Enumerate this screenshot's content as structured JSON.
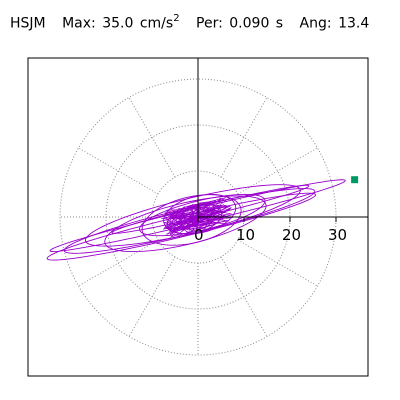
{
  "title": {
    "station": "HSJM",
    "max_label": "Max:",
    "max_value": "35.0",
    "max_units": "cm/s",
    "max_units_exp": "2",
    "period_label": "Per:",
    "period_value": "0.090 s",
    "angle_label": "Ang:",
    "angle_value": "13.4"
  },
  "colors": {
    "trace": "#9900cc",
    "marker": "#009966",
    "grid": "#888888",
    "axis": "#000000"
  },
  "chart_data": {
    "type": "line",
    "description_free": true,
    "rings": [
      10,
      20,
      30
    ],
    "ring_tick_labels": [
      "0",
      "10",
      "20",
      "30"
    ],
    "radial_lines_every_deg": 30,
    "r_max": 35,
    "max_point": {
      "r": 35.0,
      "angle_deg": 13.4
    },
    "trace_loops": [
      {
        "a": 33.0,
        "b": 1.6,
        "cx": 0.0,
        "cy": 0.3
      },
      {
        "a": 28.0,
        "b": 2.8,
        "cx": -2.0,
        "cy": -0.4
      },
      {
        "a": 24.0,
        "b": 3.8,
        "cx": -1.0,
        "cy": 0.6
      },
      {
        "a": 18.0,
        "b": 4.5,
        "cx": -3.0,
        "cy": -0.8
      },
      {
        "a": 14.0,
        "b": 3.2,
        "cx": 1.0,
        "cy": 0.2
      },
      {
        "a": 11.0,
        "b": 5.0,
        "cx": -1.5,
        "cy": -0.3
      },
      {
        "a": 8.0,
        "b": 4.0,
        "cx": 0.5,
        "cy": 0.5
      },
      {
        "a": 6.0,
        "b": 3.0,
        "cx": -0.8,
        "cy": -0.2
      },
      {
        "a": 22.0,
        "b": 1.2,
        "cx": 3.0,
        "cy": 1.0
      },
      {
        "a": 30.0,
        "b": 2.2,
        "cx": -4.0,
        "cy": -1.2
      }
    ]
  }
}
